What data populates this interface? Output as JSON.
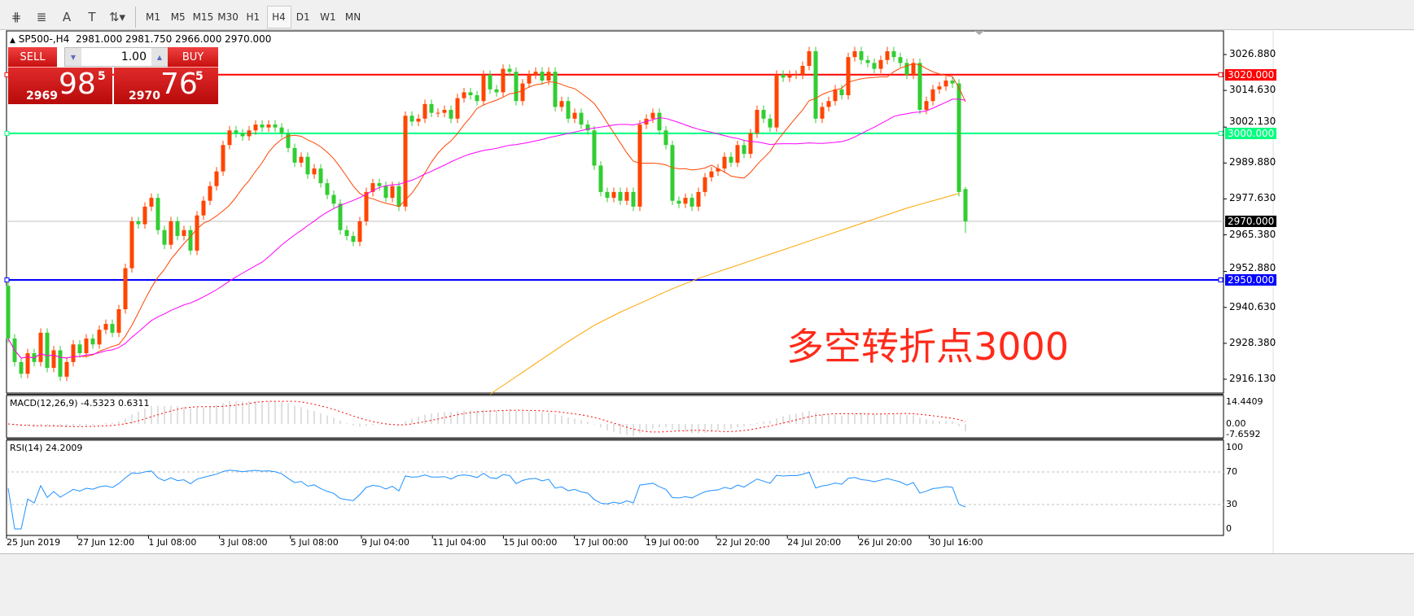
{
  "toolbar": {
    "tools": [
      {
        "icon": "fibonacci-expansion-icon",
        "glyph": "⋕"
      },
      {
        "icon": "fibonacci-fan-icon",
        "glyph": "≣"
      },
      {
        "icon": "text-icon",
        "glyph": "A"
      },
      {
        "icon": "text-label-icon",
        "glyph": "T"
      },
      {
        "icon": "arrows-dropdown-icon",
        "glyph": "⇅▾"
      }
    ],
    "timeframes": [
      "M1",
      "M5",
      "M15",
      "M30",
      "H1",
      "H4",
      "D1",
      "W1",
      "MN"
    ],
    "active_timeframe": "H4"
  },
  "chart_header": {
    "symbol": "SP500-,H4",
    "ohlc": "2981.000 2981.750 2966.000 2970.000"
  },
  "trade_panel": {
    "sell_label": "SELL",
    "buy_label": "BUY",
    "lot": "1.00",
    "sell_price": {
      "prefix": "2969",
      "big": "98",
      "sup": "5"
    },
    "buy_price": {
      "prefix": "2970",
      "big": "76",
      "sup": "5"
    }
  },
  "annotation": "多空转折点3000",
  "chart_data": {
    "type": "candlestick",
    "title": "SP500-,H4",
    "price_axis_ticks": [
      "3026.880",
      "3014.630",
      "3002.130",
      "2989.880",
      "2977.630",
      "2965.380",
      "2952.880",
      "2940.630",
      "2928.380",
      "2916.130"
    ],
    "ylim": [
      2911.4,
      3034.9
    ],
    "time_axis_labels": [
      "25 Jun 2019",
      "27 Jun 12:00",
      "1 Jul 08:00",
      "3 Jul 08:00",
      "5 Jul 08:00",
      "9 Jul 04:00",
      "11 Jul 04:00",
      "15 Jul 00:00",
      "17 Jul 00:00",
      "19 Jul 00:00",
      "22 Jul 20:00",
      "24 Jul 20:00",
      "26 Jul 20:00",
      "30 Jul 16:00"
    ],
    "up_color": "#ff4500",
    "down_color": "#32cd32",
    "first_open": 2948,
    "closes": [
      2930,
      2922,
      2918,
      2925,
      2922,
      2932,
      2920,
      2926,
      2917,
      2922,
      2928,
      2925,
      2930,
      2928,
      2933,
      2935,
      2932,
      2940,
      2954,
      2970,
      2969,
      2975,
      2978,
      2967,
      2962,
      2970,
      2965,
      2967,
      2960,
      2972,
      2977,
      2982,
      2987,
      2996,
      3001,
      3000,
      2999,
      3001,
      3003,
      3002,
      3003,
      3002,
      3000,
      2995,
      2990,
      2992,
      2986,
      2988,
      2983,
      2979,
      2976,
      2967,
      2965,
      2963,
      2970,
      2980,
      2983,
      2982,
      2978,
      2982,
      2975,
      3006,
      3004,
      3005,
      3010,
      3007,
      3007,
      3008,
      3005,
      3012,
      3014,
      3013,
      3011,
      3020,
      3015,
      3014,
      3022,
      3021,
      3011,
      3017,
      3020,
      3021,
      3018,
      3021,
      3009,
      3011,
      3005,
      3007,
      3003,
      3001,
      2989,
      2980,
      2978,
      2980,
      2977,
      2980,
      2975,
      3003,
      3005,
      3007,
      3001,
      2996,
      2977,
      2976,
      2978,
      2975,
      2980,
      2985,
      2987,
      2988,
      2992,
      2990,
      2996,
      2993,
      3000,
      3008,
      3005,
      3002,
      3020,
      3019,
      3020,
      3020,
      3023,
      3028,
      3005,
      3009,
      3011,
      3015,
      3013,
      3026,
      3028,
      3025,
      3024,
      3022,
      3025,
      3028,
      3026,
      3024,
      3020,
      3024,
      3008,
      3011,
      3015,
      3016,
      3018,
      3017,
      2980,
      2970
    ],
    "last_bar": {
      "open": 2981.0,
      "high": 2981.75,
      "low": 2966.0,
      "close": 2970.0
    },
    "moving_averages": [
      {
        "color": "#ff4500"
      },
      {
        "color": "#ff00ff"
      },
      {
        "color": "#ffa500",
        "from_bar": 74,
        "step_bars": 4,
        "values": [
          2911,
          2917,
          2923,
          2929,
          2934.5,
          2939,
          2943,
          2947,
          2950.5,
          2953.5,
          2956.5,
          2959.5,
          2962.5,
          2965.5,
          2968.5,
          2971.5,
          2974.5,
          2977,
          2979.5
        ]
      }
    ],
    "horizontal_lines": [
      {
        "price": 3020,
        "label": "3020.000",
        "color": "#ff0000"
      },
      {
        "price": 3000,
        "label": "3000.000",
        "color": "#00ff7f"
      },
      {
        "price": 2950,
        "label": "2950.000",
        "color": "#0000ff"
      },
      {
        "price": 2970,
        "label": "2970.000",
        "color": "#000000",
        "line_color": "#c0c0c0"
      }
    ],
    "macd": {
      "label": "MACD(12,26,9) -4.5323 0.6311",
      "ticks": [
        "14.4409",
        "0.00",
        "-7.6592"
      ],
      "ylim": [
        -7.6592,
        14.4409
      ],
      "hist_color": "#c0c0c0",
      "signal_color": "#ff0000"
    },
    "rsi": {
      "label": "RSI(14) 24.2009",
      "ticks": [
        "100",
        "70",
        "30",
        "0"
      ],
      "levels": [
        70,
        30
      ],
      "ylim": [
        0,
        100
      ],
      "color": "#1e90ff"
    }
  }
}
